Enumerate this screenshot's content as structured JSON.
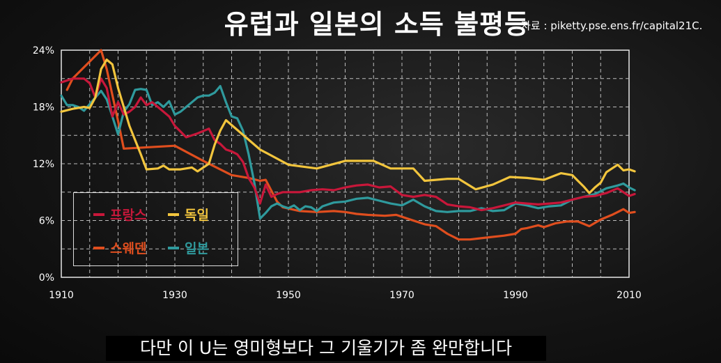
{
  "header": {
    "title": "유럽과 일본의 소득 불평등",
    "source": "자료 : piketty.pse.ens.fr/capital21C."
  },
  "subtitle": "다만 이 U는 영미형보다 그 기울기가 좀 완만합니다",
  "chart_data": {
    "type": "line",
    "title": "유럽과 일본의 소득 불평등",
    "xlim": [
      1910,
      2010
    ],
    "ylim": [
      0,
      24
    ],
    "x_ticks": [
      1910,
      1930,
      1950,
      1970,
      1990,
      2010
    ],
    "y_ticks": [
      0,
      6,
      12,
      18,
      24
    ],
    "y_tick_labels": [
      "0%",
      "6%",
      "12%",
      "18%",
      "24%"
    ],
    "grid": true,
    "legend_position": "lower-left",
    "series": [
      {
        "name": "프랑스",
        "color": "#c8173a",
        "points": [
          [
            1910,
            20.6
          ],
          [
            1912,
            21
          ],
          [
            1914,
            21
          ],
          [
            1915,
            20.5
          ],
          [
            1916,
            19
          ],
          [
            1917,
            21
          ],
          [
            1918,
            20
          ],
          [
            1919,
            17
          ],
          [
            1920,
            18.5
          ],
          [
            1921,
            17.2
          ],
          [
            1922,
            17.5
          ],
          [
            1923,
            18
          ],
          [
            1924,
            19
          ],
          [
            1925,
            18.2
          ],
          [
            1926,
            18.5
          ],
          [
            1927,
            18
          ],
          [
            1928,
            17.5
          ],
          [
            1929,
            17
          ],
          [
            1930,
            16
          ],
          [
            1932,
            14.8
          ],
          [
            1934,
            15.2
          ],
          [
            1936,
            15.7
          ],
          [
            1937,
            14.5
          ],
          [
            1938,
            14.1
          ],
          [
            1939,
            13.5
          ],
          [
            1940,
            13.3
          ],
          [
            1941,
            13
          ],
          [
            1942,
            12.2
          ],
          [
            1943,
            10.5
          ],
          [
            1944,
            9.5
          ],
          [
            1945,
            7.8
          ],
          [
            1946,
            9.8
          ],
          [
            1947,
            8.5
          ],
          [
            1948,
            8.8
          ],
          [
            1949,
            9
          ],
          [
            1950,
            9
          ],
          [
            1952,
            9
          ],
          [
            1954,
            9.2
          ],
          [
            1956,
            9.3
          ],
          [
            1958,
            9.2
          ],
          [
            1960,
            9.5
          ],
          [
            1962,
            9.7
          ],
          [
            1964,
            9.8
          ],
          [
            1966,
            9.5
          ],
          [
            1968,
            9.6
          ],
          [
            1970,
            8.7
          ],
          [
            1972,
            8.5
          ],
          [
            1974,
            8.7
          ],
          [
            1976,
            8.5
          ],
          [
            1978,
            7.7
          ],
          [
            1980,
            7.5
          ],
          [
            1982,
            7.4
          ],
          [
            1984,
            7.1
          ],
          [
            1986,
            7.3
          ],
          [
            1988,
            7.6
          ],
          [
            1990,
            7.9
          ],
          [
            1992,
            7.8
          ],
          [
            1994,
            7.7
          ],
          [
            1996,
            7.8
          ],
          [
            1998,
            7.9
          ],
          [
            2000,
            8.2
          ],
          [
            2002,
            8.5
          ],
          [
            2004,
            8.6
          ],
          [
            2006,
            8.9
          ],
          [
            2008,
            9.4
          ],
          [
            2009,
            9
          ],
          [
            2010,
            8.6
          ],
          [
            2011,
            8.8
          ]
        ]
      },
      {
        "name": "독일",
        "color": "#f2c53d",
        "points": [
          [
            1910,
            17.5
          ],
          [
            1912,
            17.8
          ],
          [
            1914,
            18
          ],
          [
            1915,
            17.9
          ],
          [
            1916,
            19
          ],
          [
            1917,
            22
          ],
          [
            1918,
            23
          ],
          [
            1919,
            22.5
          ],
          [
            1920,
            20
          ],
          [
            1922,
            16
          ],
          [
            1924,
            13
          ],
          [
            1925,
            11.4
          ],
          [
            1927,
            11.5
          ],
          [
            1928,
            11.8
          ],
          [
            1929,
            11.4
          ],
          [
            1931,
            11.4
          ],
          [
            1933,
            11.6
          ],
          [
            1934,
            11.2
          ],
          [
            1935,
            11.6
          ],
          [
            1936,
            12
          ],
          [
            1937,
            14
          ],
          [
            1938,
            15.5
          ],
          [
            1939,
            16.6
          ],
          [
            1945,
            13.5
          ],
          [
            1950,
            11.9
          ],
          [
            1955,
            11.5
          ],
          [
            1960,
            12.3
          ],
          [
            1965,
            12.3
          ],
          [
            1968,
            11.5
          ],
          [
            1972,
            11.5
          ],
          [
            1974,
            10.2
          ],
          [
            1978,
            10.4
          ],
          [
            1980,
            10.4
          ],
          [
            1983,
            9.3
          ],
          [
            1986,
            9.8
          ],
          [
            1989,
            10.6
          ],
          [
            1992,
            10.5
          ],
          [
            1995,
            10.3
          ],
          [
            1998,
            11
          ],
          [
            2000,
            10.8
          ],
          [
            2001,
            10.2
          ],
          [
            2002,
            9.6
          ],
          [
            2003,
            8.9
          ],
          [
            2004,
            9.5
          ],
          [
            2005,
            10
          ],
          [
            2006,
            11.1
          ],
          [
            2007,
            11.5
          ],
          [
            2008,
            11.9
          ],
          [
            2009,
            11.3
          ],
          [
            2010,
            11.4
          ],
          [
            2011,
            11.2
          ]
        ]
      },
      {
        "name": "스웨덴",
        "color": "#e04e1e",
        "points": [
          [
            1911,
            19.8
          ],
          [
            1912,
            21
          ],
          [
            1917,
            24
          ],
          [
            1918,
            22
          ],
          [
            1920,
            16.5
          ],
          [
            1921,
            13.6
          ],
          [
            1930,
            13.9
          ],
          [
            1935,
            12.3
          ],
          [
            1940,
            10.8
          ],
          [
            1943,
            10.5
          ],
          [
            1945,
            10.2
          ],
          [
            1946,
            10.3
          ],
          [
            1948,
            8
          ],
          [
            1949,
            7.4
          ],
          [
            1952,
            7
          ],
          [
            1955,
            6.9
          ],
          [
            1958,
            7
          ],
          [
            1960,
            6.9
          ],
          [
            1962,
            6.7
          ],
          [
            1964,
            6.6
          ],
          [
            1967,
            6.5
          ],
          [
            1969,
            6.6
          ],
          [
            1971,
            6.2
          ],
          [
            1974,
            5.6
          ],
          [
            1976,
            5.4
          ],
          [
            1978,
            4.6
          ],
          [
            1980,
            4
          ],
          [
            1982,
            4
          ],
          [
            1985,
            4.2
          ],
          [
            1988,
            4.4
          ],
          [
            1990,
            4.6
          ],
          [
            1991,
            5.1
          ],
          [
            1992,
            5.2
          ],
          [
            1994,
            5.5
          ],
          [
            1995,
            5.3
          ],
          [
            1997,
            5.7
          ],
          [
            1999,
            5.9
          ],
          [
            2001,
            5.9
          ],
          [
            2003,
            5.4
          ],
          [
            2005,
            6.1
          ],
          [
            2007,
            6.6
          ],
          [
            2009,
            7.2
          ],
          [
            2010,
            6.8
          ],
          [
            2011,
            6.9
          ]
        ]
      },
      {
        "name": "일본",
        "color": "#2f9a9d",
        "points": [
          [
            1910,
            19.2
          ],
          [
            1911,
            18.2
          ],
          [
            1912,
            18.2
          ],
          [
            1913,
            18
          ],
          [
            1914,
            17.6
          ],
          [
            1915,
            18.3
          ],
          [
            1916,
            19
          ],
          [
            1917,
            19.7
          ],
          [
            1918,
            18.8
          ],
          [
            1919,
            17
          ],
          [
            1920,
            15.1
          ],
          [
            1921,
            17.5
          ],
          [
            1922,
            18.3
          ],
          [
            1923,
            19.8
          ],
          [
            1924,
            19.9
          ],
          [
            1925,
            19.8
          ],
          [
            1926,
            18.2
          ],
          [
            1927,
            18.5
          ],
          [
            1928,
            18
          ],
          [
            1929,
            18.6
          ],
          [
            1930,
            17.2
          ],
          [
            1931,
            17.5
          ],
          [
            1932,
            18
          ],
          [
            1933,
            18.5
          ],
          [
            1934,
            19
          ],
          [
            1935,
            19.2
          ],
          [
            1936,
            19.2
          ],
          [
            1937,
            19.5
          ],
          [
            1938,
            20.2
          ],
          [
            1939,
            18.5
          ],
          [
            1940,
            17
          ],
          [
            1941,
            16.8
          ],
          [
            1942,
            15.5
          ],
          [
            1943,
            13
          ],
          [
            1944,
            10
          ],
          [
            1945,
            6.2
          ],
          [
            1946,
            6.8
          ],
          [
            1947,
            7.5
          ],
          [
            1948,
            7.8
          ],
          [
            1949,
            7.5
          ],
          [
            1950,
            7.3
          ],
          [
            1951,
            7.6
          ],
          [
            1952,
            7.1
          ],
          [
            1953,
            7.5
          ],
          [
            1954,
            7.4
          ],
          [
            1955,
            7
          ],
          [
            1956,
            7.5
          ],
          [
            1957,
            7.7
          ],
          [
            1958,
            7.9
          ],
          [
            1960,
            8
          ],
          [
            1962,
            8.3
          ],
          [
            1964,
            8.4
          ],
          [
            1966,
            8.1
          ],
          [
            1968,
            7.8
          ],
          [
            1970,
            7.6
          ],
          [
            1972,
            8.2
          ],
          [
            1974,
            7.5
          ],
          [
            1976,
            7
          ],
          [
            1978,
            6.9
          ],
          [
            1980,
            7
          ],
          [
            1982,
            7
          ],
          [
            1984,
            7.3
          ],
          [
            1986,
            7
          ],
          [
            1988,
            7.1
          ],
          [
            1990,
            7.8
          ],
          [
            1992,
            7.6
          ],
          [
            1994,
            7.3
          ],
          [
            1996,
            7.5
          ],
          [
            1998,
            7.6
          ],
          [
            2000,
            8.2
          ],
          [
            2002,
            8.5
          ],
          [
            2004,
            8.8
          ],
          [
            2006,
            9.4
          ],
          [
            2008,
            9.7
          ],
          [
            2009,
            9.9
          ],
          [
            2010,
            9.5
          ],
          [
            2011,
            9.2
          ]
        ]
      }
    ]
  },
  "legend": {
    "france": "프랑스",
    "germany": "독일",
    "sweden": "스웨덴",
    "japan": "일본"
  }
}
